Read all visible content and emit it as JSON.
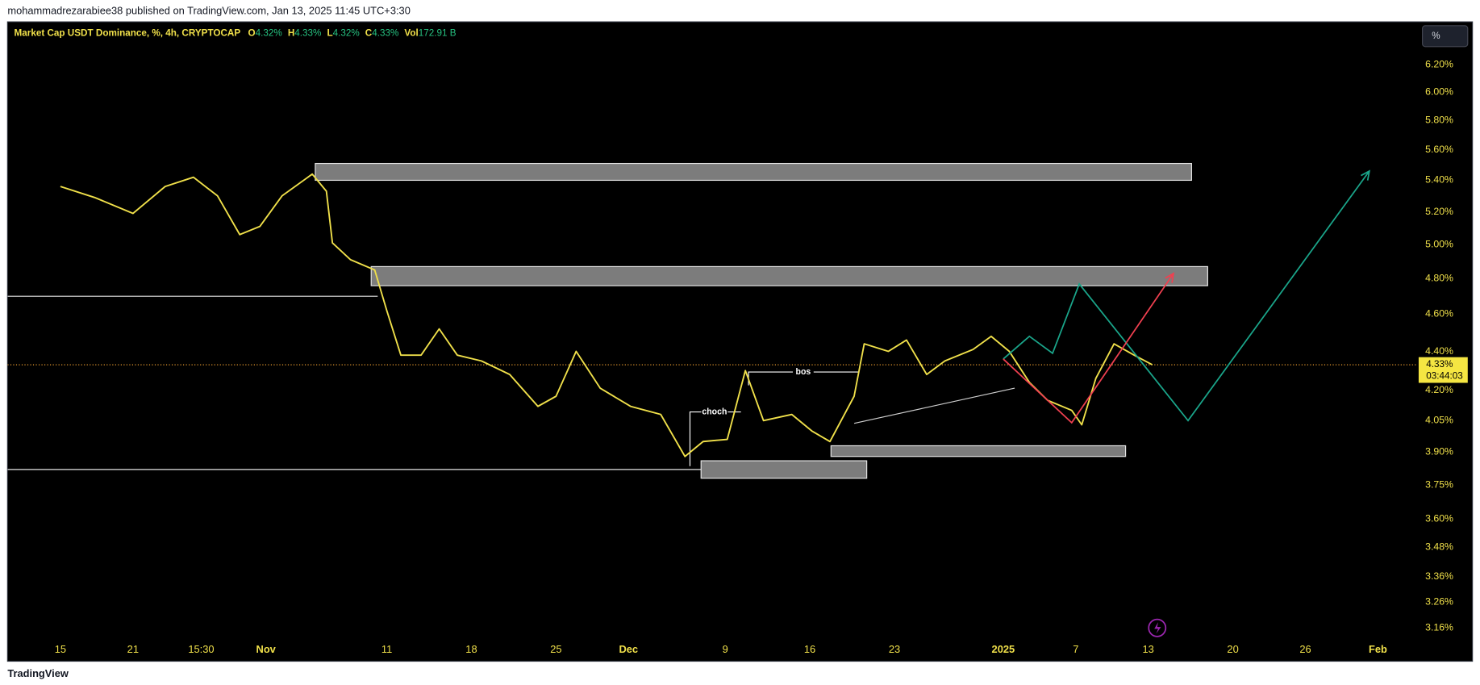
{
  "header": "mohammadrezarabiee38 published on TradingView.com, Jan 13, 2025 11:45 UTC+3:30",
  "footer": "TradingView",
  "toolbar": {
    "percent_button": "%"
  },
  "chart_data": {
    "type": "line",
    "title": "Market Cap USDT Dominance, %, 4h, CRYPTOCAP",
    "ohlc": [
      {
        "key": "O",
        "text": "4.32%"
      },
      {
        "key": "H",
        "text": "4.33%"
      },
      {
        "key": "L",
        "text": "4.32%"
      },
      {
        "key": "C",
        "text": "4.33%"
      },
      {
        "key": "Vol",
        "text": "172.91 B"
      }
    ],
    "log_scale": true,
    "grid": false,
    "x": [
      "2024-10-15T00:00",
      "2024-10-17T20:00",
      "2024-10-21T00:00",
      "2024-10-23T16:00",
      "2024-10-26T00:00",
      "2024-10-28T00:00",
      "2024-10-29T20:00",
      "2024-10-31T12:00",
      "2024-11-02T08:00",
      "2024-11-04T20:00",
      "2024-11-06T00:00",
      "2024-11-06T12:00",
      "2024-11-08T00:00",
      "2024-11-10T00:00",
      "2024-11-11T00:00",
      "2024-11-12T04:00",
      "2024-11-13T20:00",
      "2024-11-15T08:00",
      "2024-11-16T20:00",
      "2024-11-18T20:00",
      "2024-11-21T04:00",
      "2024-11-23T12:00",
      "2024-11-25T00:00",
      "2024-11-26T16:00",
      "2024-11-28T16:00",
      "2024-12-01T04:00",
      "2024-12-03T16:00",
      "2024-12-05T16:00",
      "2024-12-07T04:00",
      "2024-12-09T04:00",
      "2024-12-10T16:00",
      "2024-12-12T04:00",
      "2024-12-14T12:00",
      "2024-12-16T04:00",
      "2024-12-17T16:00",
      "2024-12-19T16:00",
      "2024-12-20T12:00",
      "2024-12-22T12:00",
      "2024-12-24T00:00",
      "2024-12-25T16:00",
      "2024-12-27T04:00",
      "2024-12-29T12:00",
      "2024-12-31T00:00",
      "2025-01-01T12:00",
      "2025-01-03T04:00",
      "2025-01-04T16:00",
      "2025-01-06T16:00",
      "2025-01-07T12:00",
      "2025-01-08T16:00",
      "2025-01-10T04:00",
      "2025-01-11T20:00",
      "2025-01-13T08:00"
    ],
    "series": [
      {
        "name": "USDT Dominance",
        "color": "#f0e04a",
        "values": [
          5.36,
          5.29,
          5.19,
          5.36,
          5.42,
          5.3,
          5.06,
          5.11,
          5.3,
          5.44,
          5.33,
          5.01,
          4.91,
          4.85,
          4.62,
          4.38,
          4.38,
          4.52,
          4.38,
          4.35,
          4.28,
          4.12,
          4.17,
          4.4,
          4.21,
          4.12,
          4.08,
          3.88,
          3.95,
          3.96,
          4.3,
          4.05,
          4.08,
          4.0,
          3.95,
          4.17,
          4.44,
          4.4,
          4.46,
          4.28,
          4.35,
          4.41,
          4.48,
          4.4,
          4.24,
          4.15,
          4.1,
          4.03,
          4.26,
          4.44,
          4.38,
          4.33
        ]
      }
    ],
    "xlim": [
      "2024-10-10T15:00",
      "2025-02-04T07:00"
    ],
    "xticks": [
      {
        "value": "2024-10-15T00:00",
        "label": "15"
      },
      {
        "value": "2024-10-21T00:00",
        "label": "21"
      },
      {
        "value": "2024-10-26T15:30",
        "label": "15:30"
      },
      {
        "value": "2024-11-01T00:00",
        "label": "Nov"
      },
      {
        "value": "2024-11-11T00:00",
        "label": "11"
      },
      {
        "value": "2024-11-18T00:00",
        "label": "18"
      },
      {
        "value": "2024-11-25T00:00",
        "label": "25"
      },
      {
        "value": "2024-12-01T00:00",
        "label": "Dec"
      },
      {
        "value": "2024-12-09T00:00",
        "label": "9"
      },
      {
        "value": "2024-12-16T00:00",
        "label": "16"
      },
      {
        "value": "2024-12-23T00:00",
        "label": "23"
      },
      {
        "value": "2025-01-01T00:00",
        "label": "2025"
      },
      {
        "value": "2025-01-07T00:00",
        "label": "7"
      },
      {
        "value": "2025-01-13T00:00",
        "label": "13"
      },
      {
        "value": "2025-01-20T00:00",
        "label": "20"
      },
      {
        "value": "2025-01-26T00:00",
        "label": "26"
      },
      {
        "value": "2025-02-01T00:00",
        "label": "Feb"
      }
    ],
    "ylim": [
      3.04,
      6.52
    ],
    "yticks": [
      {
        "value": 6.2,
        "label": "6.20%"
      },
      {
        "value": 6.0,
        "label": "6.00%"
      },
      {
        "value": 5.8,
        "label": "5.80%"
      },
      {
        "value": 5.6,
        "label": "5.60%"
      },
      {
        "value": 5.4,
        "label": "5.40%"
      },
      {
        "value": 5.2,
        "label": "5.20%"
      },
      {
        "value": 5.0,
        "label": "5.00%"
      },
      {
        "value": 4.8,
        "label": "4.80%"
      },
      {
        "value": 4.6,
        "label": "4.60%"
      },
      {
        "value": 4.4,
        "label": "4.40%"
      },
      {
        "value": 4.2,
        "label": "4.20%"
      },
      {
        "value": 4.05,
        "label": "4.05%"
      },
      {
        "value": 3.9,
        "label": "3.90%"
      },
      {
        "value": 3.75,
        "label": "3.75%"
      },
      {
        "value": 3.6,
        "label": "3.60%"
      },
      {
        "value": 3.48,
        "label": "3.48%"
      },
      {
        "value": 3.36,
        "label": "3.36%"
      },
      {
        "value": 3.26,
        "label": "3.26%"
      },
      {
        "value": 3.16,
        "label": "3.16%"
      }
    ],
    "last_price": {
      "value": 4.33,
      "label": "4.33%",
      "countdown": "03:44:03",
      "color": "#f0a030"
    },
    "zones": [
      {
        "x": [
          "2024-11-05T02:00",
          "2025-01-16T14:00"
        ],
        "y": [
          5.4,
          5.51
        ]
      },
      {
        "x": [
          "2024-11-09T17:00",
          "2025-01-17T22:00"
        ],
        "y": [
          4.76,
          4.87
        ]
      },
      {
        "x": [
          "2024-12-07T00:00",
          "2024-12-20T17:00"
        ],
        "y": [
          3.78,
          3.86
        ]
      },
      {
        "x": [
          "2024-12-17T18:00",
          "2025-01-11T03:00"
        ],
        "y": [
          3.88,
          3.93
        ]
      }
    ],
    "levels": [
      {
        "x": [
          "2024-10-10T15:00",
          "2024-11-10T06:00"
        ],
        "y": 4.7
      },
      {
        "x": [
          "2024-10-10T15:00",
          "2024-12-07T00:00"
        ],
        "y": 3.82
      }
    ],
    "projections": [
      {
        "color": "#1aa58a",
        "x": [
          "2025-01-01T00:00",
          "2025-01-03T04:00",
          "2025-01-05T02:00",
          "2025-01-07T07:00",
          "2025-01-16T07:00",
          "2025-01-31T07:00"
        ],
        "y": [
          4.36,
          4.48,
          4.39,
          4.77,
          4.05,
          5.46
        ]
      },
      {
        "color": "#f04050",
        "x": [
          "2025-01-01T00:00",
          "2025-01-06T16:00",
          "2025-01-15T02:00"
        ],
        "y": [
          4.36,
          4.04,
          4.83
        ]
      }
    ],
    "annotations": [
      "choch",
      "bos"
    ]
  }
}
